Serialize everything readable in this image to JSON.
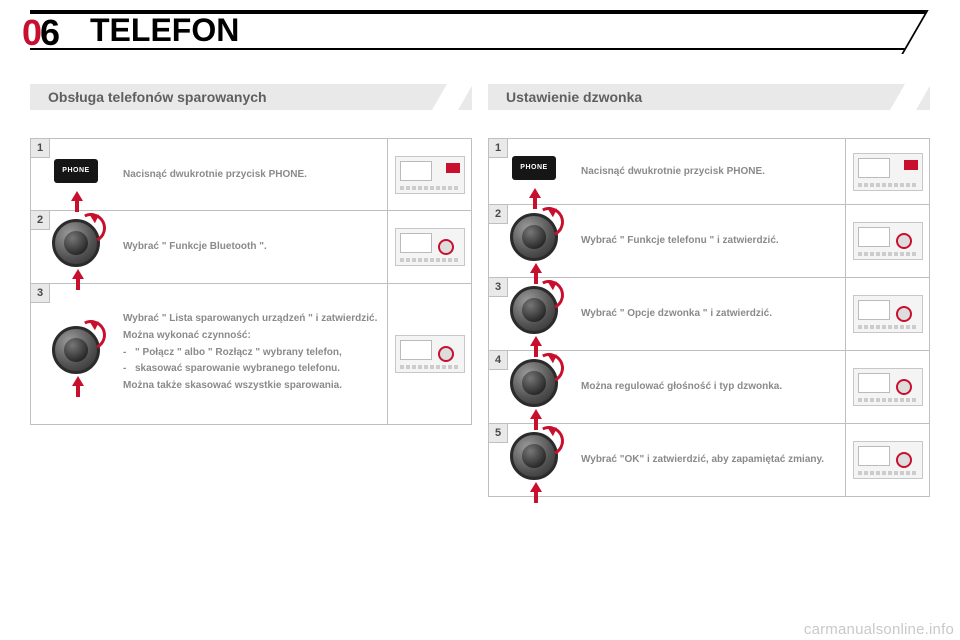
{
  "chapter": {
    "prefix": "0",
    "digit": "6"
  },
  "title": "TELEFON",
  "watermark": "carmanualsonline.info",
  "phone_key_label": "PHONE",
  "colors": {
    "accent": "#c8102e",
    "text_muted": "#8a8a8a",
    "panel_bg": "#e9e9e9",
    "border": "#bfbfbf"
  },
  "left": {
    "heading": "Obsługa telefonów sparowanych",
    "steps": [
      {
        "num": "1",
        "icon": "phone",
        "thumb": "alt",
        "text": "Nacisnąć dwukrotnie przycisk PHONE."
      },
      {
        "num": "2",
        "icon": "knob",
        "thumb": "std",
        "text": "Wybrać \" Funkcje Bluetooth \"."
      },
      {
        "num": "3",
        "icon": "knob",
        "thumb": "std",
        "tall": true,
        "lead": "Wybrać \" Lista sparowanych urządzeń \" i zatwierdzić.",
        "mid": "Można wykonać czynność:",
        "bullets": [
          "\" Połącz \" albo \" Rozłącz \" wybrany telefon,",
          "skasować sparowanie wybranego telefonu."
        ],
        "tail": "Można także skasować wszystkie sparowania."
      }
    ]
  },
  "right": {
    "heading": "Ustawienie dzwonka",
    "steps": [
      {
        "num": "1",
        "icon": "phone",
        "thumb": "alt",
        "text": "Nacisnąć dwukrotnie przycisk PHONE."
      },
      {
        "num": "2",
        "icon": "knob",
        "thumb": "std",
        "text": "Wybrać \" Funkcje telefonu \" i zatwierdzić."
      },
      {
        "num": "3",
        "icon": "knob",
        "thumb": "std",
        "text": "Wybrać \" Opcje dzwonka \" i zatwierdzić."
      },
      {
        "num": "4",
        "icon": "knob",
        "thumb": "std",
        "text": "Można regulować głośność i typ dzwonka."
      },
      {
        "num": "5",
        "icon": "knob",
        "thumb": "std",
        "text": "Wybrać \"OK\" i zatwierdzić, aby zapamiętać zmiany."
      }
    ]
  }
}
